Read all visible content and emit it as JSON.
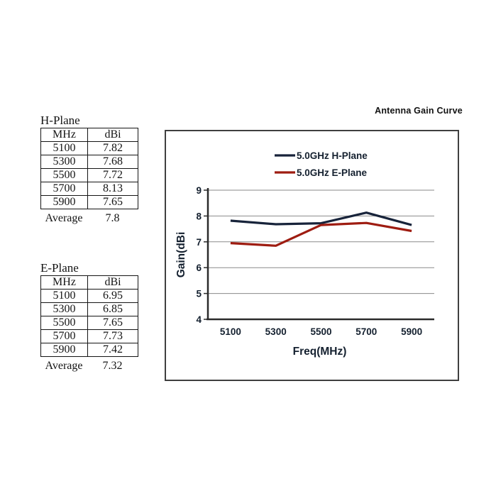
{
  "tables": [
    {
      "title": "H-Plane",
      "headers": [
        "MHz",
        "dBi"
      ],
      "rows": [
        [
          "5100",
          "7.82"
        ],
        [
          "5300",
          "7.68"
        ],
        [
          "5500",
          "7.72"
        ],
        [
          "5700",
          "8.13"
        ],
        [
          "5900",
          "7.65"
        ]
      ],
      "footer": {
        "label": "Average",
        "value": "7.8"
      }
    },
    {
      "title": "E-Plane",
      "headers": [
        "MHz",
        "dBi"
      ],
      "rows": [
        [
          "5100",
          "6.95"
        ],
        [
          "5300",
          "6.85"
        ],
        [
          "5500",
          "7.65"
        ],
        [
          "5700",
          "7.73"
        ],
        [
          "5900",
          "7.42"
        ]
      ],
      "footer": {
        "label": "Average",
        "value": "7.32"
      }
    }
  ],
  "chart": {
    "title": "Antenna Gain Curve",
    "xlabel": "Freq(MHz)",
    "ylabel": "Gain(dBi"
  },
  "chart_data": {
    "type": "line",
    "title": "Antenna Gain Curve",
    "categories": [
      "5100",
      "5300",
      "5500",
      "5700",
      "5900"
    ],
    "series": [
      {
        "name": "5.0GHz H-Plane",
        "values": [
          7.82,
          7.68,
          7.72,
          8.13,
          7.65
        ],
        "color": "#17233a"
      },
      {
        "name": "5.0GHz E-Plane",
        "values": [
          6.95,
          6.85,
          7.65,
          7.73,
          7.42
        ],
        "color": "#9e1c11"
      }
    ],
    "xlabel": "Freq(MHz)",
    "ylabel": "Gain(dBi",
    "ylim": [
      4,
      9
    ],
    "yticks": [
      4,
      5,
      6,
      7,
      8,
      9
    ],
    "grid": true,
    "legend_position": "top-center-inside"
  },
  "colors": {
    "grid": "#8a8a8a",
    "axis": "#2b2b2b",
    "chart_text": "#14202f",
    "box_border": "#3f3f3f",
    "table_border": "#141414",
    "background": "#ffffff"
  }
}
